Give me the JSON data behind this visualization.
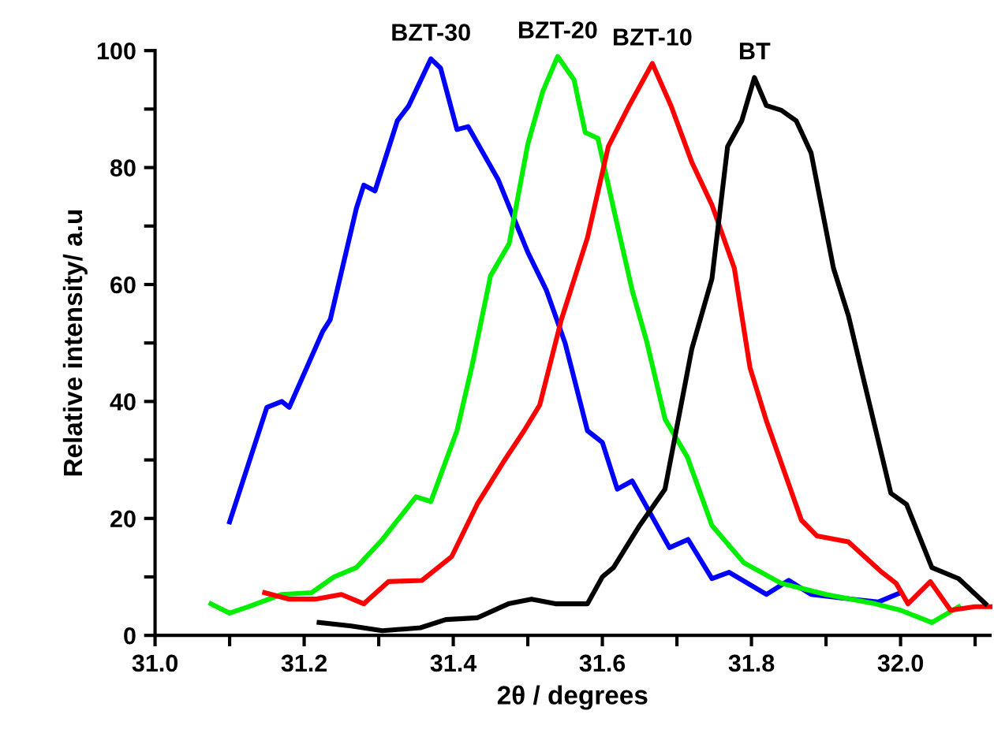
{
  "chart_data": {
    "type": "line",
    "xlabel": "2θ / degrees",
    "ylabel": "Relative intensity/ a.u",
    "xlim": [
      31.0,
      32.12
    ],
    "ylim": [
      0,
      100
    ],
    "xticks": [
      {
        "value": 31.0,
        "label": "31.0"
      },
      {
        "value": 31.1,
        "label": null
      },
      {
        "value": 31.2,
        "label": "31.2"
      },
      {
        "value": 31.3,
        "label": null
      },
      {
        "value": 31.4,
        "label": "31.4"
      },
      {
        "value": 31.5,
        "label": null
      },
      {
        "value": 31.6,
        "label": "31.6"
      },
      {
        "value": 31.7,
        "label": null
      },
      {
        "value": 31.8,
        "label": "31.8"
      },
      {
        "value": 31.9,
        "label": null
      },
      {
        "value": 32.0,
        "label": "32.0"
      },
      {
        "value": 32.1,
        "label": null
      }
    ],
    "yticks": [
      0,
      {
        "value": 10,
        "label": null
      },
      20,
      {
        "value": 30,
        "label": null
      },
      40,
      {
        "value": 50,
        "label": null
      },
      60,
      {
        "value": 70,
        "label": null
      },
      80,
      {
        "value": 90,
        "label": null
      },
      100
    ],
    "grid": false,
    "legend": false,
    "marker": "none",
    "line_style": "solid",
    "series": [
      {
        "name": "BZT-30",
        "color": "#0000ff",
        "x": [
          31.1,
          31.15,
          31.17,
          31.18,
          31.225,
          31.235,
          31.27,
          31.28,
          31.295,
          31.325,
          31.34,
          31.37,
          31.383,
          31.405,
          31.42,
          31.46,
          31.5,
          31.525,
          31.55,
          31.558,
          31.58,
          31.6,
          31.62,
          31.64,
          31.69,
          31.715,
          31.747,
          31.77,
          31.82,
          31.85,
          31.88,
          31.935,
          31.97,
          32.0
        ],
        "values": [
          19.4,
          39,
          40,
          39,
          52,
          54,
          73,
          77,
          76,
          88,
          90.5,
          98.6,
          97,
          86.5,
          87,
          78,
          65.5,
          59,
          50,
          46,
          35,
          33,
          25,
          26.4,
          15,
          16.4,
          9.7,
          10.8,
          7,
          9.4,
          7,
          6.2,
          5.7,
          7.3
        ]
      },
      {
        "name": "BZT-20",
        "color": "#00ee00",
        "x": [
          31.075,
          31.1,
          31.125,
          31.17,
          31.21,
          31.24,
          31.27,
          31.305,
          31.35,
          31.37,
          31.405,
          31.425,
          31.45,
          31.475,
          31.5,
          31.52,
          31.54,
          31.562,
          31.577,
          31.594,
          31.615,
          31.64,
          31.66,
          31.684,
          31.714,
          31.747,
          31.79,
          31.84,
          31.9,
          31.966,
          32.0,
          32.042,
          32.078
        ],
        "values": [
          5.4,
          3.8,
          4.9,
          7,
          7.3,
          10,
          11.6,
          16.4,
          23.7,
          22.9,
          35,
          46,
          61.5,
          67,
          84,
          93,
          99,
          95,
          86,
          85,
          73,
          59,
          50,
          37,
          30.5,
          18.8,
          12.4,
          8.9,
          7,
          5.4,
          4.3,
          2.2,
          4.9
        ]
      },
      {
        "name": "BZT-10",
        "color": "#ff0000",
        "x": [
          31.147,
          31.18,
          31.215,
          31.25,
          31.28,
          31.313,
          31.358,
          31.398,
          31.432,
          31.467,
          31.495,
          31.516,
          31.545,
          31.58,
          31.608,
          31.636,
          31.667,
          31.692,
          31.72,
          31.747,
          31.777,
          31.798,
          31.82,
          31.867,
          31.888,
          31.93,
          31.973,
          31.994,
          32.01,
          32.04,
          32.067,
          32.1,
          32.12
        ],
        "values": [
          7.3,
          6.2,
          6.2,
          7,
          5.4,
          9.2,
          9.4,
          13.5,
          22.4,
          29.6,
          35,
          39.4,
          54,
          68,
          83.6,
          90.6,
          97.8,
          90.6,
          80.9,
          73.6,
          62.8,
          45.8,
          36.7,
          19.7,
          17,
          16,
          11,
          8.9,
          5.4,
          9.2,
          4.3,
          4.9,
          4.9
        ]
      },
      {
        "name": "BT",
        "color": "#000000",
        "x": [
          31.22,
          31.263,
          31.305,
          31.356,
          31.39,
          31.432,
          31.474,
          31.505,
          31.537,
          31.58,
          31.6,
          31.615,
          31.65,
          31.684,
          31.72,
          31.747,
          31.768,
          31.787,
          31.804,
          31.82,
          31.84,
          31.86,
          31.88,
          31.91,
          31.93,
          31.95,
          31.987,
          32.008,
          32.042,
          32.078,
          32.114
        ],
        "values": [
          2.2,
          1.6,
          0.8,
          1.3,
          2.7,
          3,
          5.4,
          6.2,
          5.4,
          5.4,
          10,
          11.6,
          18.8,
          25,
          49,
          61,
          83.6,
          88,
          95.4,
          90.6,
          89.8,
          88,
          82.5,
          62.8,
          54.7,
          44,
          24.3,
          22.4,
          11.6,
          9.7,
          5.4
        ]
      }
    ]
  }
}
